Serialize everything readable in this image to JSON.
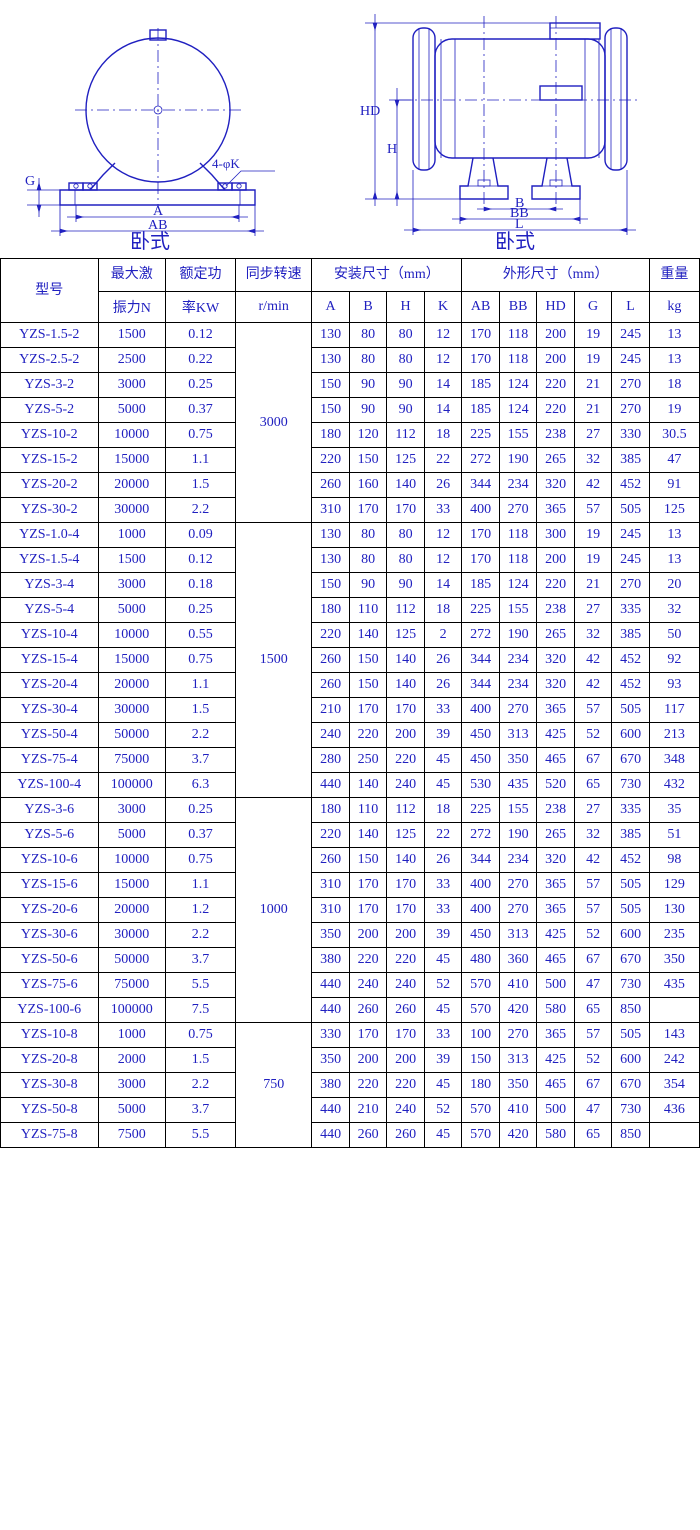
{
  "diagrams": {
    "left_label": "卧式",
    "right_label": "卧式",
    "dim_labels": {
      "A": "A",
      "AB": "AB",
      "G": "G",
      "phi_K": "φK",
      "four": "4",
      "B": "B",
      "BB": "BB",
      "L": "L",
      "H": "H",
      "HD": "HD"
    }
  },
  "headers": {
    "model": "型号",
    "force_l1": "最大激",
    "force_l2": "振力N",
    "power_l1": "额定功",
    "power_l2": "率KW",
    "speed_l1": "同步转速",
    "speed_l2": "r/min",
    "install": "安装尺寸（mm）",
    "outline": "外形尺寸（mm）",
    "weight_l1": "重量",
    "weight_l2": "kg",
    "A": "A",
    "B": "B",
    "H": "H",
    "K": "K",
    "AB": "AB",
    "BB": "BB",
    "HD": "HD",
    "G": "G",
    "L": "L"
  },
  "groups": [
    {
      "speed": "3000",
      "rows": [
        {
          "model": "YZS-1.5-2",
          "force": "1500",
          "power": "0.12",
          "A": "130",
          "B": "80",
          "H": "80",
          "K": "12",
          "AB": "170",
          "BB": "118",
          "HD": "200",
          "G": "19",
          "L": "245",
          "weight": "13"
        },
        {
          "model": "YZS-2.5-2",
          "force": "2500",
          "power": "0.22",
          "A": "130",
          "B": "80",
          "H": "80",
          "K": "12",
          "AB": "170",
          "BB": "118",
          "HD": "200",
          "G": "19",
          "L": "245",
          "weight": "13"
        },
        {
          "model": "YZS-3-2",
          "force": "3000",
          "power": "0.25",
          "A": "150",
          "B": "90",
          "H": "90",
          "K": "14",
          "AB": "185",
          "BB": "124",
          "HD": "220",
          "G": "21",
          "L": "270",
          "weight": "18"
        },
        {
          "model": "YZS-5-2",
          "force": "5000",
          "power": "0.37",
          "A": "150",
          "B": "90",
          "H": "90",
          "K": "14",
          "AB": "185",
          "BB": "124",
          "HD": "220",
          "G": "21",
          "L": "270",
          "weight": "19"
        },
        {
          "model": "YZS-10-2",
          "force": "10000",
          "power": "0.75",
          "A": "180",
          "B": "120",
          "H": "112",
          "K": "18",
          "AB": "225",
          "BB": "155",
          "HD": "238",
          "G": "27",
          "L": "330",
          "weight": "30.5"
        },
        {
          "model": "YZS-15-2",
          "force": "15000",
          "power": "1.1",
          "A": "220",
          "B": "150",
          "H": "125",
          "K": "22",
          "AB": "272",
          "BB": "190",
          "HD": "265",
          "G": "32",
          "L": "385",
          "weight": "47"
        },
        {
          "model": "YZS-20-2",
          "force": "20000",
          "power": "1.5",
          "A": "260",
          "B": "160",
          "H": "140",
          "K": "26",
          "AB": "344",
          "BB": "234",
          "HD": "320",
          "G": "42",
          "L": "452",
          "weight": "91"
        },
        {
          "model": "YZS-30-2",
          "force": "30000",
          "power": "2.2",
          "A": "310",
          "B": "170",
          "H": "170",
          "K": "33",
          "AB": "400",
          "BB": "270",
          "HD": "365",
          "G": "57",
          "L": "505",
          "weight": "125"
        }
      ]
    },
    {
      "speed": "1500",
      "rows": [
        {
          "model": "YZS-1.0-4",
          "force": "1000",
          "power": "0.09",
          "A": "130",
          "B": "80",
          "H": "80",
          "K": "12",
          "AB": "170",
          "BB": "118",
          "HD": "300",
          "G": "19",
          "L": "245",
          "weight": "13"
        },
        {
          "model": "YZS-1.5-4",
          "force": "1500",
          "power": "0.12",
          "A": "130",
          "B": "80",
          "H": "80",
          "K": "12",
          "AB": "170",
          "BB": "118",
          "HD": "200",
          "G": "19",
          "L": "245",
          "weight": "13"
        },
        {
          "model": "YZS-3-4",
          "force": "3000",
          "power": "0.18",
          "A": "150",
          "B": "90",
          "H": "90",
          "K": "14",
          "AB": "185",
          "BB": "124",
          "HD": "220",
          "G": "21",
          "L": "270",
          "weight": "20"
        },
        {
          "model": "YZS-5-4",
          "force": "5000",
          "power": "0.25",
          "A": "180",
          "B": "110",
          "H": "112",
          "K": "18",
          "AB": "225",
          "BB": "155",
          "HD": "238",
          "G": "27",
          "L": "335",
          "weight": "32"
        },
        {
          "model": "YZS-10-4",
          "force": "10000",
          "power": "0.55",
          "A": "220",
          "B": "140",
          "H": "125",
          "K": "2",
          "AB": "272",
          "BB": "190",
          "HD": "265",
          "G": "32",
          "L": "385",
          "weight": "50"
        },
        {
          "model": "YZS-15-4",
          "force": "15000",
          "power": "0.75",
          "A": "260",
          "B": "150",
          "H": "140",
          "K": "26",
          "AB": "344",
          "BB": "234",
          "HD": "320",
          "G": "42",
          "L": "452",
          "weight": "92"
        },
        {
          "model": "YZS-20-4",
          "force": "20000",
          "power": "1.1",
          "A": "260",
          "B": "150",
          "H": "140",
          "K": "26",
          "AB": "344",
          "BB": "234",
          "HD": "320",
          "G": "42",
          "L": "452",
          "weight": "93"
        },
        {
          "model": "YZS-30-4",
          "force": "30000",
          "power": "1.5",
          "A": "210",
          "B": "170",
          "H": "170",
          "K": "33",
          "AB": "400",
          "BB": "270",
          "HD": "365",
          "G": "57",
          "L": "505",
          "weight": "117"
        },
        {
          "model": "YZS-50-4",
          "force": "50000",
          "power": "2.2",
          "A": "240",
          "B": "220",
          "H": "200",
          "K": "39",
          "AB": "450",
          "BB": "313",
          "HD": "425",
          "G": "52",
          "L": "600",
          "weight": "213"
        },
        {
          "model": "YZS-75-4",
          "force": "75000",
          "power": "3.7",
          "A": "280",
          "B": "250",
          "H": "220",
          "K": "45",
          "AB": "450",
          "BB": "350",
          "HD": "465",
          "G": "67",
          "L": "670",
          "weight": "348"
        },
        {
          "model": "YZS-100-4",
          "force": "100000",
          "power": "6.3",
          "A": "440",
          "B": "140",
          "H": "240",
          "K": "45",
          "AB": "530",
          "BB": "435",
          "HD": "520",
          "G": "65",
          "L": "730",
          "weight": "432"
        }
      ]
    },
    {
      "speed": "1000",
      "rows": [
        {
          "model": "YZS-3-6",
          "force": "3000",
          "power": "0.25",
          "A": "180",
          "B": "110",
          "H": "112",
          "K": "18",
          "AB": "225",
          "BB": "155",
          "HD": "238",
          "G": "27",
          "L": "335",
          "weight": "35"
        },
        {
          "model": "YZS-5-6",
          "force": "5000",
          "power": "0.37",
          "A": "220",
          "B": "140",
          "H": "125",
          "K": "22",
          "AB": "272",
          "BB": "190",
          "HD": "265",
          "G": "32",
          "L": "385",
          "weight": "51"
        },
        {
          "model": "YZS-10-6",
          "force": "10000",
          "power": "0.75",
          "A": "260",
          "B": "150",
          "H": "140",
          "K": "26",
          "AB": "344",
          "BB": "234",
          "HD": "320",
          "G": "42",
          "L": "452",
          "weight": "98"
        },
        {
          "model": "YZS-15-6",
          "force": "15000",
          "power": "1.1",
          "A": "310",
          "B": "170",
          "H": "170",
          "K": "33",
          "AB": "400",
          "BB": "270",
          "HD": "365",
          "G": "57",
          "L": "505",
          "weight": "129"
        },
        {
          "model": "YZS-20-6",
          "force": "20000",
          "power": "1.2",
          "A": "310",
          "B": "170",
          "H": "170",
          "K": "33",
          "AB": "400",
          "BB": "270",
          "HD": "365",
          "G": "57",
          "L": "505",
          "weight": "130"
        },
        {
          "model": "YZS-30-6",
          "force": "30000",
          "power": "2.2",
          "A": "350",
          "B": "200",
          "H": "200",
          "K": "39",
          "AB": "450",
          "BB": "313",
          "HD": "425",
          "G": "52",
          "L": "600",
          "weight": "235"
        },
        {
          "model": "YZS-50-6",
          "force": "50000",
          "power": "3.7",
          "A": "380",
          "B": "220",
          "H": "220",
          "K": "45",
          "AB": "480",
          "BB": "360",
          "HD": "465",
          "G": "67",
          "L": "670",
          "weight": "350"
        },
        {
          "model": "YZS-75-6",
          "force": "75000",
          "power": "5.5",
          "A": "440",
          "B": "240",
          "H": "240",
          "K": "52",
          "AB": "570",
          "BB": "410",
          "HD": "500",
          "G": "47",
          "L": "730",
          "weight": "435"
        },
        {
          "model": "YZS-100-6",
          "force": "100000",
          "power": "7.5",
          "A": "440",
          "B": "260",
          "H": "260",
          "K": "45",
          "AB": "570",
          "BB": "420",
          "HD": "580",
          "G": "65",
          "L": "850",
          "weight": ""
        }
      ]
    },
    {
      "speed": "750",
      "rows": [
        {
          "model": "YZS-10-8",
          "force": "1000",
          "power": "0.75",
          "A": "330",
          "B": "170",
          "H": "170",
          "K": "33",
          "AB": "100",
          "BB": "270",
          "HD": "365",
          "G": "57",
          "L": "505",
          "weight": "143"
        },
        {
          "model": "YZS-20-8",
          "force": "2000",
          "power": "1.5",
          "A": "350",
          "B": "200",
          "H": "200",
          "K": "39",
          "AB": "150",
          "BB": "313",
          "HD": "425",
          "G": "52",
          "L": "600",
          "weight": "242"
        },
        {
          "model": "YZS-30-8",
          "force": "3000",
          "power": "2.2",
          "A": "380",
          "B": "220",
          "H": "220",
          "K": "45",
          "AB": "180",
          "BB": "350",
          "HD": "465",
          "G": "67",
          "L": "670",
          "weight": "354"
        },
        {
          "model": "YZS-50-8",
          "force": "5000",
          "power": "3.7",
          "A": "440",
          "B": "210",
          "H": "240",
          "K": "52",
          "AB": "570",
          "BB": "410",
          "HD": "500",
          "G": "47",
          "L": "730",
          "weight": "436"
        },
        {
          "model": "YZS-75-8",
          "force": "7500",
          "power": "5.5",
          "A": "440",
          "B": "260",
          "H": "260",
          "K": "45",
          "AB": "570",
          "BB": "420",
          "HD": "580",
          "G": "65",
          "L": "850",
          "weight": ""
        }
      ]
    }
  ]
}
